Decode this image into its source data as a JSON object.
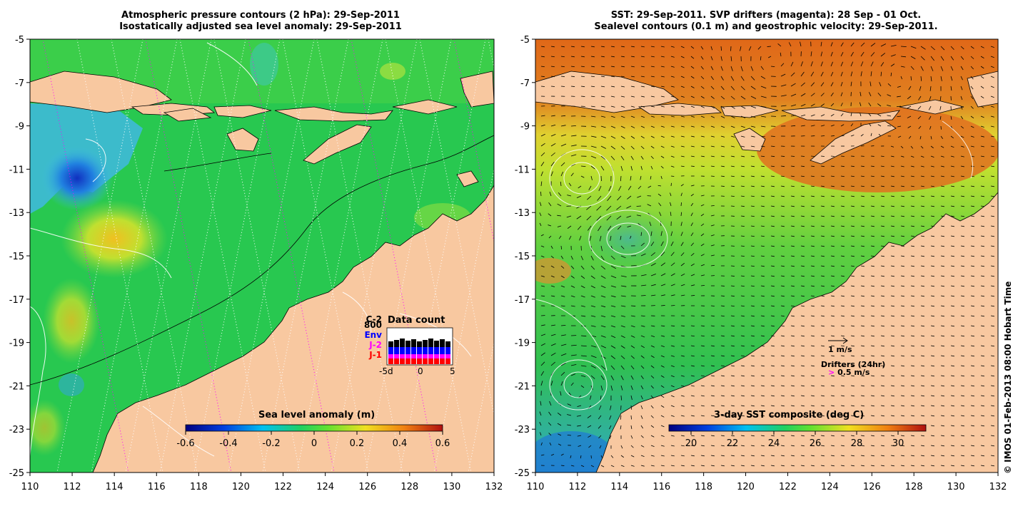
{
  "left_panel": {
    "title_line1": "Atmospheric pressure contours (2 hPa): 29-Sep-2011",
    "title_line2": "Isostatically adjusted sea level anomaly: 29-Sep-2011",
    "colorbar_title": "Sea level anomaly (m)",
    "colorbar_ticks": [
      "-0.6",
      "-0.4",
      "-0.2",
      "0",
      "0.2",
      "0.4",
      "0.6"
    ],
    "legend": {
      "sat_labels": [
        {
          "text": "C-2",
          "color": "#000000"
        },
        {
          "text": "800",
          "color": "#000000"
        },
        {
          "text": "Env",
          "color": "#0000ff"
        },
        {
          "text": "J-2",
          "color": "#ff00ff"
        },
        {
          "text": "J-1",
          "color": "#ff0000"
        }
      ],
      "title": "Data count",
      "axis_labels": [
        "-5d",
        "0",
        "5"
      ]
    }
  },
  "right_panel": {
    "title_line1": "SST: 29-Sep-2011. SVP drifters (magenta): 28 Sep - 01 Oct.",
    "title_line2": "Sealevel contours (0.1 m) and geostrophic velocity: 29-Sep-2011.",
    "colorbar_title": "3-day SST composite (deg C)",
    "colorbar_ticks": [
      "20",
      "22",
      "24",
      "26",
      "28",
      "30"
    ],
    "scale_vector_label": "1 m/s",
    "drifters_label": "Drifters (24hr)",
    "drifters_scale": "0.5 m/s",
    "drifter_glyph": ">"
  },
  "axes": {
    "lon_ticks": [
      "110",
      "112",
      "114",
      "116",
      "118",
      "120",
      "122",
      "124",
      "126",
      "128",
      "130",
      "132"
    ],
    "lat_ticks": [
      "-5",
      "-7",
      "-9",
      "-11",
      "-13",
      "-15",
      "-17",
      "-19",
      "-21",
      "-23",
      "-25"
    ]
  },
  "colors": {
    "land": "#f8c8a0",
    "ocean_green": "#22c84a",
    "sst_orange": "#e07020",
    "sst_yellow": "#d8e030"
  },
  "copyright": "© IMOS 01-Feb-2013 08:00 Hobart Time"
}
